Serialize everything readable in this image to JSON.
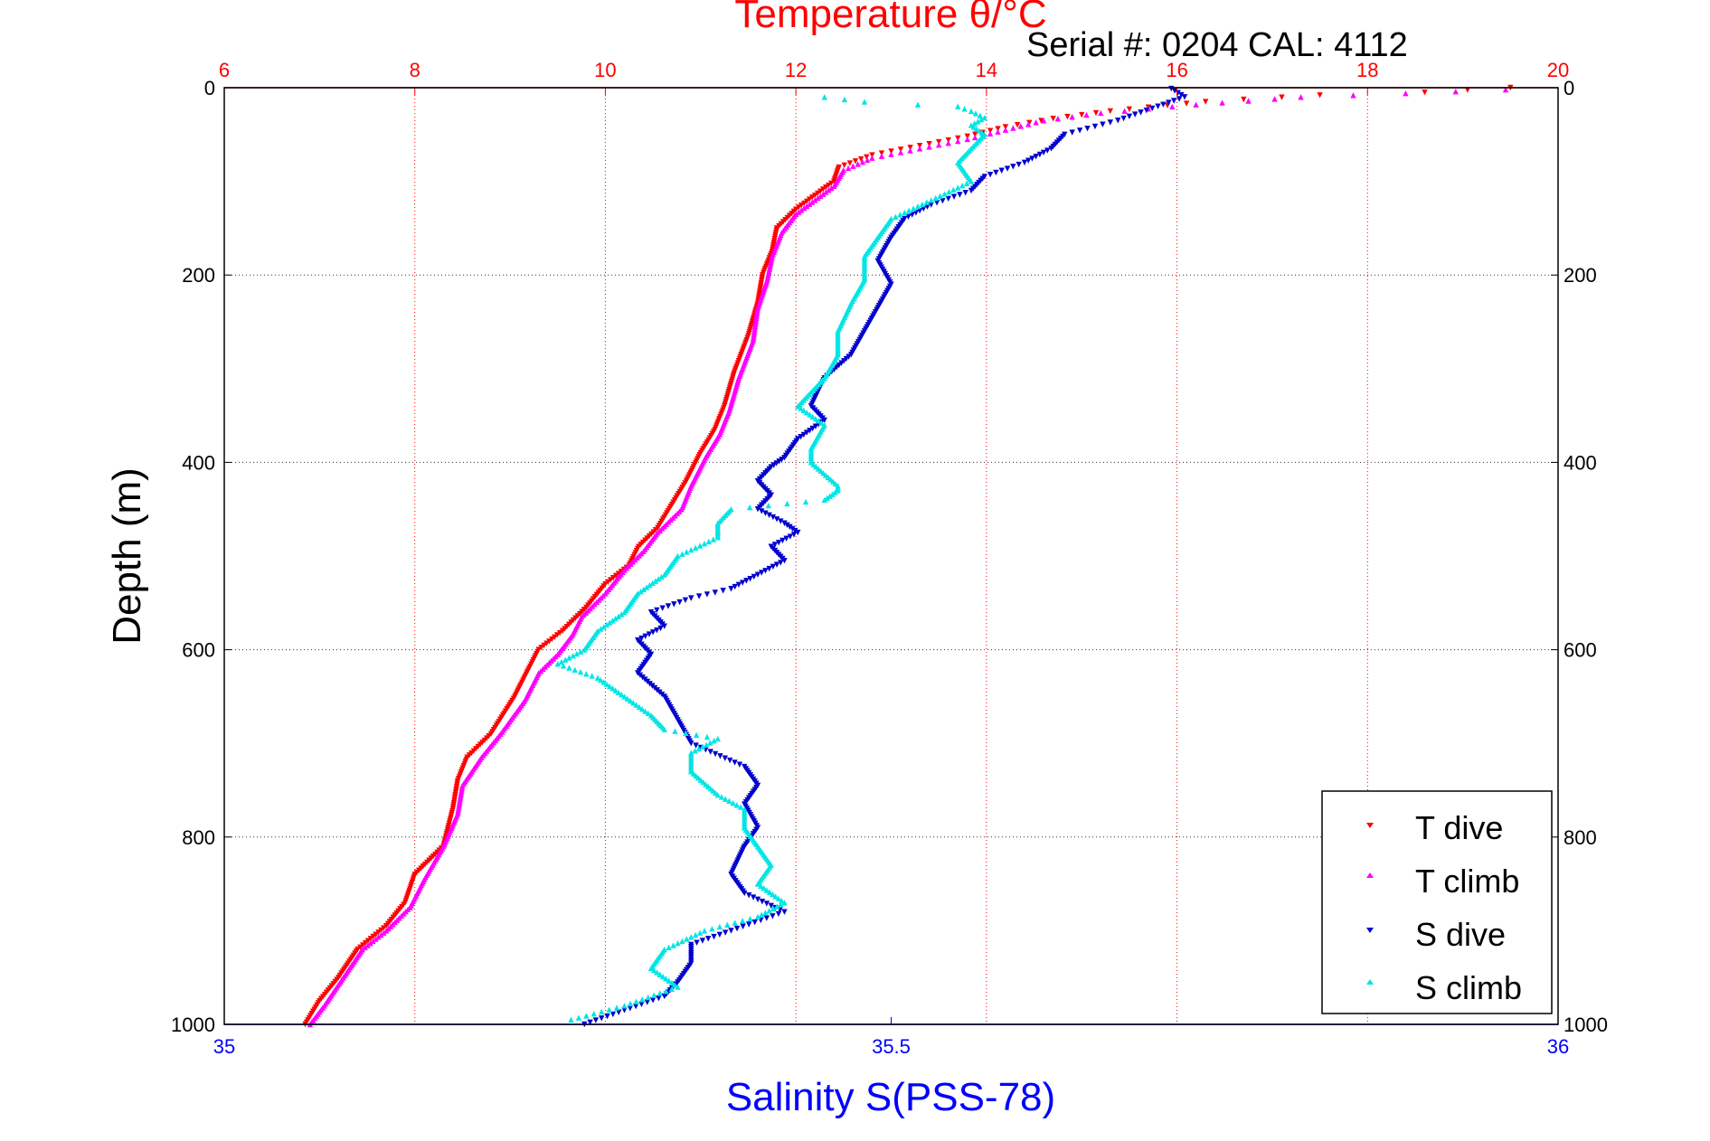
{
  "chart_data": {
    "type": "scatter",
    "title": "Temperature θ/°C",
    "subtitle": "Serial #: 0204  CAL: 4112",
    "ylabel": "Depth (m)",
    "xlabel": "Salinity S(PSS-78)",
    "grid": true,
    "legend_position": "bottom-right",
    "temp_axis": {
      "range": [
        6,
        20
      ],
      "ticks": [
        6,
        8,
        10,
        12,
        14,
        16,
        18,
        20
      ],
      "tick_labels": [
        "6",
        "8",
        "10",
        "12",
        "14",
        "16",
        "18",
        "20"
      ]
    },
    "salinity_axis": {
      "range": [
        35,
        36
      ],
      "ticks": [
        35,
        35.5,
        36
      ],
      "tick_labels": [
        "35",
        "35.5",
        "36"
      ]
    },
    "depth_axis": {
      "range": [
        0,
        1000
      ],
      "reversed": true,
      "ticks": [
        0,
        200,
        400,
        600,
        800,
        1000
      ],
      "tick_labels": [
        "0",
        "200",
        "400",
        "600",
        "800",
        "1000"
      ]
    },
    "colors": {
      "t_dive": "#ff0000",
      "t_climb": "#ff00ff",
      "s_dive": "#0000cc",
      "s_climb": "#00e5e5",
      "temp_axis": "#ff0000",
      "sal_axis": "#0000ff",
      "frame": "#000000"
    },
    "series": [
      {
        "name": "T dive",
        "axis": "temperature",
        "marker": "down-triangle",
        "points": [
          [
            19.5,
            0
          ],
          [
            18.6,
            5
          ],
          [
            17.5,
            8
          ],
          [
            16.3,
            15
          ],
          [
            15.3,
            25
          ],
          [
            14.7,
            33
          ],
          [
            14.2,
            42
          ],
          [
            13.8,
            52
          ],
          [
            13.3,
            62
          ],
          [
            12.8,
            72
          ],
          [
            12.45,
            85
          ],
          [
            12.4,
            100
          ],
          [
            12.2,
            115
          ],
          [
            12.0,
            130
          ],
          [
            11.8,
            150
          ],
          [
            11.75,
            175
          ],
          [
            11.65,
            200
          ],
          [
            11.6,
            230
          ],
          [
            11.5,
            265
          ],
          [
            11.35,
            305
          ],
          [
            11.25,
            340
          ],
          [
            11.15,
            365
          ],
          [
            11.0,
            390
          ],
          [
            10.85,
            420
          ],
          [
            10.7,
            445
          ],
          [
            10.55,
            470
          ],
          [
            10.35,
            490
          ],
          [
            10.25,
            510
          ],
          [
            10.0,
            530
          ],
          [
            9.8,
            555
          ],
          [
            9.55,
            580
          ],
          [
            9.3,
            600
          ],
          [
            9.2,
            620
          ],
          [
            9.05,
            650
          ],
          [
            8.8,
            690
          ],
          [
            8.55,
            715
          ],
          [
            8.45,
            740
          ],
          [
            8.4,
            770
          ],
          [
            8.3,
            810
          ],
          [
            8.0,
            840
          ],
          [
            7.9,
            870
          ],
          [
            7.7,
            895
          ],
          [
            7.4,
            920
          ],
          [
            7.2,
            950
          ],
          [
            7.0,
            975
          ],
          [
            6.85,
            1000
          ]
        ]
      },
      {
        "name": "T climb",
        "axis": "temperature",
        "marker": "up-triangle",
        "points": [
          [
            19.45,
            2
          ],
          [
            18.4,
            6
          ],
          [
            17.3,
            10
          ],
          [
            16.2,
            18
          ],
          [
            15.2,
            27
          ],
          [
            14.6,
            35
          ],
          [
            14.2,
            45
          ],
          [
            13.8,
            55
          ],
          [
            13.3,
            65
          ],
          [
            12.8,
            75
          ],
          [
            12.5,
            88
          ],
          [
            12.4,
            105
          ],
          [
            12.2,
            120
          ],
          [
            12.0,
            135
          ],
          [
            11.85,
            155
          ],
          [
            11.75,
            180
          ],
          [
            11.7,
            205
          ],
          [
            11.6,
            235
          ],
          [
            11.55,
            270
          ],
          [
            11.4,
            310
          ],
          [
            11.3,
            345
          ],
          [
            11.2,
            370
          ],
          [
            11.05,
            395
          ],
          [
            10.9,
            425
          ],
          [
            10.8,
            450
          ],
          [
            10.55,
            475
          ],
          [
            10.4,
            495
          ],
          [
            10.2,
            515
          ],
          [
            10.0,
            540
          ],
          [
            9.75,
            565
          ],
          [
            9.65,
            585
          ],
          [
            9.5,
            605
          ],
          [
            9.3,
            625
          ],
          [
            9.15,
            655
          ],
          [
            8.9,
            690
          ],
          [
            8.7,
            715
          ],
          [
            8.5,
            745
          ],
          [
            8.45,
            775
          ],
          [
            8.3,
            810
          ],
          [
            8.1,
            845
          ],
          [
            7.95,
            875
          ],
          [
            7.7,
            900
          ],
          [
            7.45,
            920
          ],
          [
            7.25,
            950
          ],
          [
            7.05,
            980
          ],
          [
            6.9,
            1000
          ]
        ]
      },
      {
        "name": "S dive",
        "axis": "salinity",
        "marker": "down-triangle",
        "points": [
          [
            35.71,
            1
          ],
          [
            35.72,
            10
          ],
          [
            35.7,
            20
          ],
          [
            35.67,
            35
          ],
          [
            35.63,
            50
          ],
          [
            35.62,
            65
          ],
          [
            35.6,
            80
          ],
          [
            35.57,
            95
          ],
          [
            35.56,
            110
          ],
          [
            35.53,
            125
          ],
          [
            35.51,
            140
          ],
          [
            35.5,
            160
          ],
          [
            35.49,
            185
          ],
          [
            35.5,
            210
          ],
          [
            35.49,
            235
          ],
          [
            35.48,
            260
          ],
          [
            35.47,
            285
          ],
          [
            35.45,
            310
          ],
          [
            35.44,
            340
          ],
          [
            35.45,
            355
          ],
          [
            35.43,
            375
          ],
          [
            35.42,
            395
          ],
          [
            35.41,
            405
          ],
          [
            35.4,
            420
          ],
          [
            35.41,
            435
          ],
          [
            35.4,
            450
          ],
          [
            35.42,
            465
          ],
          [
            35.43,
            475
          ],
          [
            35.41,
            490
          ],
          [
            35.42,
            505
          ],
          [
            35.4,
            520
          ],
          [
            35.38,
            535
          ],
          [
            35.35,
            545
          ],
          [
            35.32,
            560
          ],
          [
            35.33,
            575
          ],
          [
            35.31,
            590
          ],
          [
            35.32,
            605
          ],
          [
            35.31,
            625
          ],
          [
            35.33,
            650
          ],
          [
            35.34,
            675
          ],
          [
            35.35,
            700
          ],
          [
            35.39,
            725
          ],
          [
            35.4,
            745
          ],
          [
            35.39,
            765
          ],
          [
            35.4,
            790
          ],
          [
            35.39,
            810
          ],
          [
            35.38,
            840
          ],
          [
            35.39,
            860
          ],
          [
            35.42,
            880
          ],
          [
            35.38,
            900
          ],
          [
            35.35,
            915
          ],
          [
            35.35,
            935
          ],
          [
            35.34,
            955
          ],
          [
            35.33,
            970
          ],
          [
            35.3,
            985
          ],
          [
            35.27,
            1000
          ]
        ]
      },
      {
        "name": "S climb",
        "axis": "salinity",
        "marker": "up-triangle",
        "points": [
          [
            35.45,
            10
          ],
          [
            35.48,
            15
          ],
          [
            35.52,
            18
          ],
          [
            35.55,
            20
          ],
          [
            35.56,
            25
          ],
          [
            35.57,
            32
          ],
          [
            35.56,
            40
          ],
          [
            35.57,
            50
          ],
          [
            35.56,
            65
          ],
          [
            35.55,
            80
          ],
          [
            35.56,
            100
          ],
          [
            35.53,
            120
          ],
          [
            35.5,
            140
          ],
          [
            35.49,
            160
          ],
          [
            35.48,
            180
          ],
          [
            35.48,
            205
          ],
          [
            35.47,
            230
          ],
          [
            35.46,
            260
          ],
          [
            35.46,
            285
          ],
          [
            35.45,
            310
          ],
          [
            35.43,
            340
          ],
          [
            35.45,
            360
          ],
          [
            35.44,
            385
          ],
          [
            35.44,
            400
          ],
          [
            35.46,
            425
          ],
          [
            35.46,
            430
          ],
          [
            35.45,
            440
          ],
          [
            35.38,
            450
          ],
          [
            35.37,
            465
          ],
          [
            35.37,
            480
          ],
          [
            35.34,
            500
          ],
          [
            35.33,
            520
          ],
          [
            35.31,
            540
          ],
          [
            35.3,
            560
          ],
          [
            35.28,
            580
          ],
          [
            35.27,
            600
          ],
          [
            35.25,
            615
          ],
          [
            35.28,
            630
          ],
          [
            35.3,
            650
          ],
          [
            35.32,
            670
          ],
          [
            35.33,
            685
          ],
          [
            35.37,
            695
          ],
          [
            35.35,
            710
          ],
          [
            35.35,
            730
          ],
          [
            35.37,
            755
          ],
          [
            35.39,
            770
          ],
          [
            35.39,
            790
          ],
          [
            35.4,
            810
          ],
          [
            35.41,
            830
          ],
          [
            35.4,
            850
          ],
          [
            35.42,
            870
          ],
          [
            35.4,
            885
          ],
          [
            35.36,
            900
          ],
          [
            35.33,
            920
          ],
          [
            35.32,
            940
          ],
          [
            35.34,
            960
          ],
          [
            35.3,
            980
          ],
          [
            35.26,
            995
          ]
        ]
      }
    ]
  }
}
